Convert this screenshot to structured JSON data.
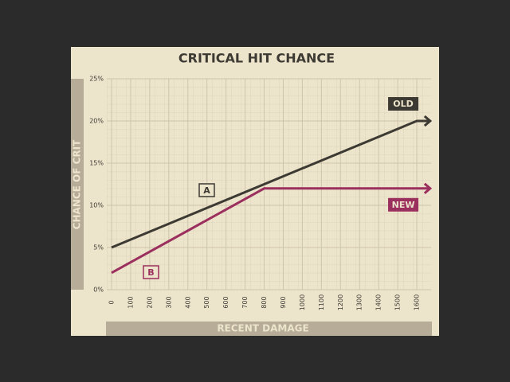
{
  "chart_data": {
    "type": "line",
    "title": "CRITICAL HIT CHANCE",
    "x_label": "RECENT DAMAGE",
    "y_label": "CHANCE OF CRIT",
    "xlim": [
      -25,
      1675
    ],
    "ylim": [
      0,
      25
    ],
    "xticks": [
      0,
      100,
      200,
      300,
      400,
      500,
      600,
      700,
      800,
      900,
      1000,
      1100,
      1200,
      1300,
      1400,
      1500,
      1600
    ],
    "yticks": [
      {
        "value": 0,
        "label": "0%"
      },
      {
        "value": 5,
        "label": "5%"
      },
      {
        "value": 10,
        "label": "10%"
      },
      {
        "value": 15,
        "label": "15%"
      },
      {
        "value": 20,
        "label": "20%"
      },
      {
        "value": 25,
        "label": "25%"
      }
    ],
    "grid": true,
    "series": [
      {
        "name": "OLD",
        "color": "#3d3a33",
        "x": [
          0,
          1600,
          1670
        ],
        "values": [
          5,
          20,
          20
        ]
      },
      {
        "name": "NEW",
        "color": "#9b2f5d",
        "x": [
          0,
          800,
          1670
        ],
        "values": [
          2,
          12,
          12
        ]
      }
    ],
    "annotations": [
      "A",
      "B"
    ]
  }
}
